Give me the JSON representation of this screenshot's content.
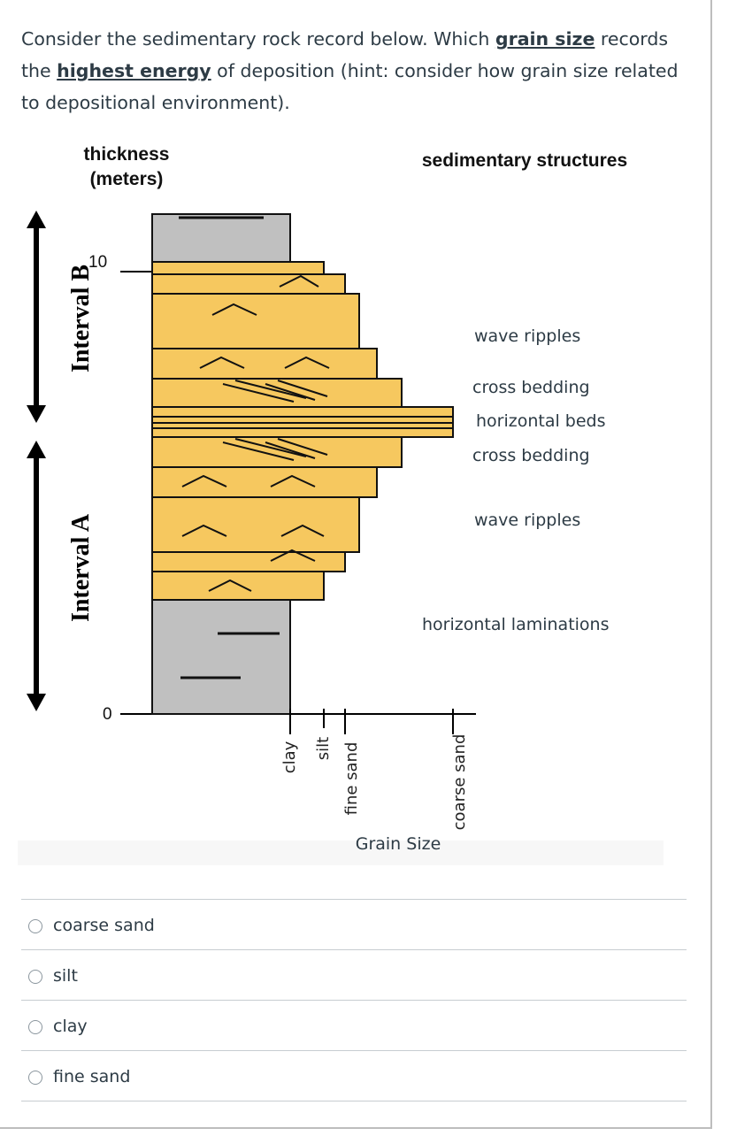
{
  "question": {
    "part1": "Consider the sedimentary rock record below. Which ",
    "em1": "grain size",
    "part2": " records the ",
    "em2": "highest energy",
    "part3": " of deposition (hint: consider how grain size related to depositional environment)."
  },
  "figure": {
    "thickness_label_1": "thickness",
    "thickness_label_2": "(meters)",
    "structures_heading": "sedimentary structures",
    "interval_b": "Interval B",
    "interval_a": "Interval A",
    "tick_top": "10",
    "tick_bottom": "0",
    "grain_size_title": "Grain Size",
    "grain_labels": [
      "clay",
      "silt",
      "fine sand",
      "coarse sand"
    ],
    "structures": [
      "wave ripples",
      "cross bedding",
      "horizontal beds",
      "cross bedding",
      "wave ripples",
      "horizontal laminations"
    ],
    "colors": {
      "sand": "#f6c85f",
      "clay": "#c0c0c0",
      "outline": "#111111"
    }
  },
  "options": [
    {
      "label": "coarse sand"
    },
    {
      "label": "silt"
    },
    {
      "label": "clay"
    },
    {
      "label": "fine sand"
    }
  ]
}
